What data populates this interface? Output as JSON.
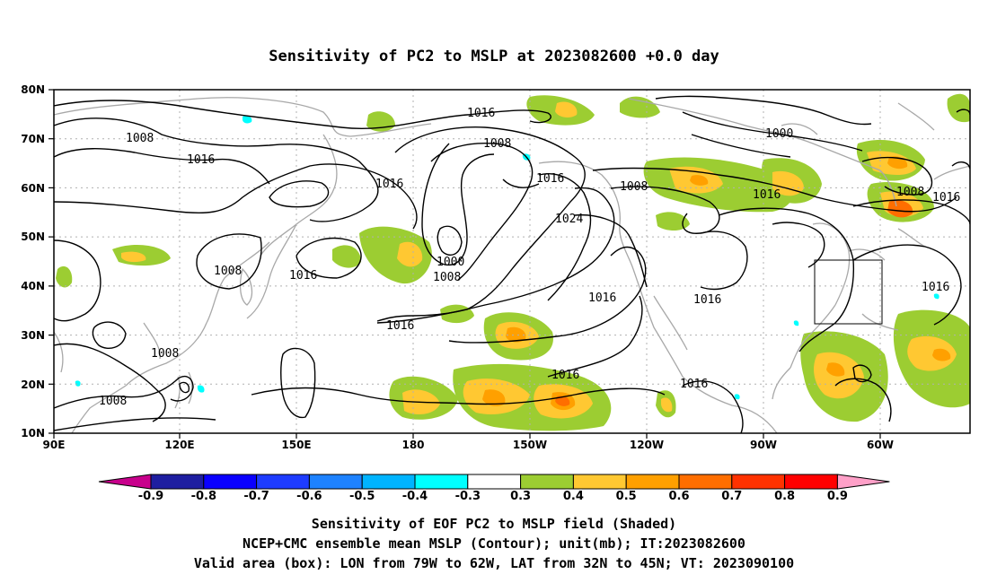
{
  "title": "Sensitivity of PC2 to MSLP at 2023082600 +0.0 day",
  "lat_labels": [
    "80N",
    "70N",
    "60N",
    "50N",
    "40N",
    "30N",
    "20N",
    "10N"
  ],
  "lon_labels": [
    "90E",
    "120E",
    "150E",
    "180",
    "150W",
    "120W",
    "90W",
    "60W"
  ],
  "colorbar": {
    "labels": [
      "-0.9",
      "-0.8",
      "-0.7",
      "-0.6",
      "-0.5",
      "-0.4",
      "-0.3",
      "0.3",
      "0.4",
      "0.5",
      "0.6",
      "0.7",
      "0.8",
      "0.9"
    ],
    "colors": [
      "#c8008c",
      "#1e1ea0",
      "#0a00ff",
      "#1e3cff",
      "#1e82ff",
      "#00b4ff",
      "#00ffff",
      "#ffffff",
      "#9ccd32",
      "#ffc832",
      "#ffa000",
      "#ff6e00",
      "#ff3200",
      "#ff0000",
      "#ffa0c8"
    ]
  },
  "contour_labels": [
    {
      "text": "1016"
    },
    {
      "text": "1008"
    },
    {
      "text": "1000"
    },
    {
      "text": "1016"
    },
    {
      "text": "1008"
    },
    {
      "text": "1016"
    },
    {
      "text": "1008"
    },
    {
      "text": "1016"
    },
    {
      "text": "1008"
    },
    {
      "text": "1016"
    },
    {
      "text": "1016"
    },
    {
      "text": "1024"
    },
    {
      "text": "1000"
    },
    {
      "text": "1008"
    },
    {
      "text": "1016"
    },
    {
      "text": "1016"
    },
    {
      "text": "1016"
    },
    {
      "text": "1016"
    },
    {
      "text": "1008"
    },
    {
      "text": "1008"
    },
    {
      "text": "1008"
    },
    {
      "text": "1016"
    },
    {
      "text": "1016"
    },
    {
      "text": "1016"
    }
  ],
  "valid_box": {
    "lon_from": "79W",
    "lon_to": "62W",
    "lat_from": "32N",
    "lat_to": "45N"
  },
  "caption": {
    "line1": "Sensitivity of EOF PC2 to MSLP field (Shaded)",
    "line2": "NCEP+CMC ensemble mean MSLP (Contour); unit(mb); IT:2023082600",
    "line3": "Valid area (box): LON from 79W to 62W, LAT from 32N to 45N; VT: 2023090100"
  }
}
